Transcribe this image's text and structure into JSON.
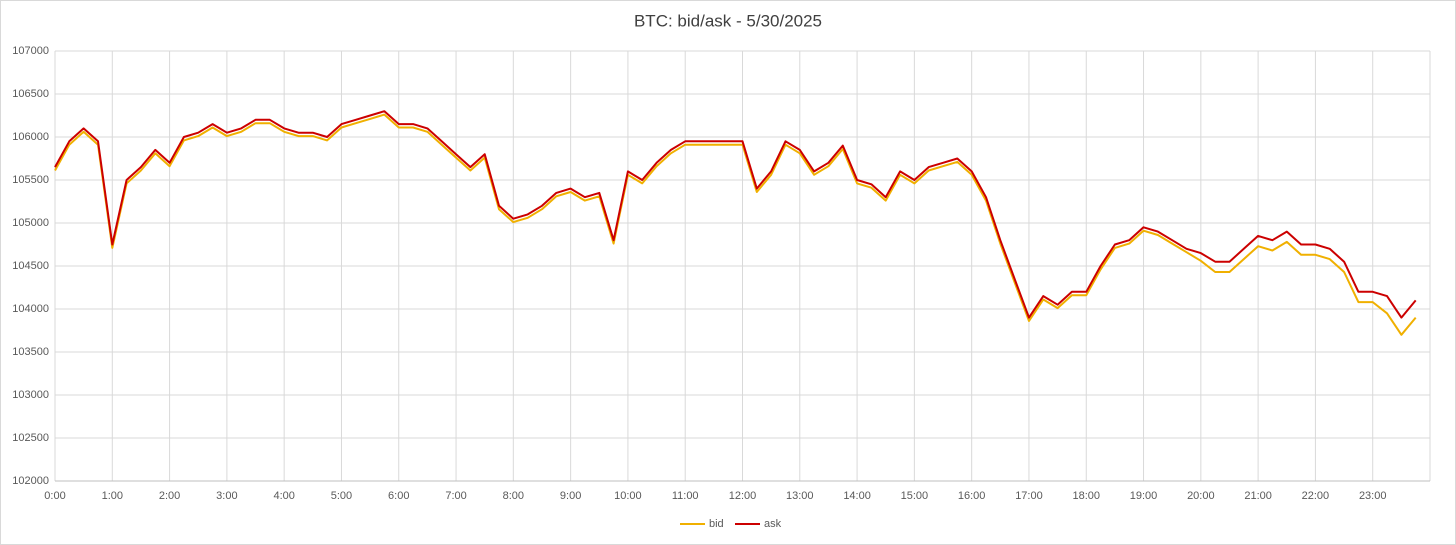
{
  "chart_data": {
    "type": "line",
    "title": "BTC: bid/ask - 5/30/2025",
    "x": [
      0,
      0.25,
      0.5,
      0.75,
      1,
      1.25,
      1.5,
      1.75,
      2,
      2.25,
      2.5,
      2.75,
      3,
      3.25,
      3.5,
      3.75,
      4,
      4.25,
      4.5,
      4.75,
      5,
      5.25,
      5.5,
      5.75,
      6,
      6.25,
      6.5,
      6.75,
      7,
      7.25,
      7.5,
      7.75,
      8,
      8.25,
      8.5,
      8.75,
      9,
      9.25,
      9.5,
      9.75,
      10,
      10.25,
      10.5,
      10.75,
      11,
      11.25,
      11.5,
      11.75,
      12,
      12.25,
      12.5,
      12.75,
      13,
      13.25,
      13.5,
      13.75,
      14,
      14.25,
      14.5,
      14.75,
      15,
      15.25,
      15.5,
      15.75,
      16,
      16.25,
      16.5,
      16.75,
      17,
      17.25,
      17.5,
      17.75,
      18,
      18.25,
      18.5,
      18.75,
      19,
      19.25,
      19.5,
      19.75,
      20,
      20.25,
      20.5,
      20.75,
      21,
      21.25,
      21.5,
      21.75,
      22,
      22.25,
      22.5,
      22.75,
      23,
      23.25,
      23.5,
      23.75
    ],
    "series": [
      {
        "name": "bid",
        "color": "#f0b000",
        "values": [
          105610,
          105910,
          106060,
          105910,
          104710,
          105460,
          105610,
          105810,
          105660,
          105960,
          106010,
          106110,
          106010,
          106060,
          106160,
          106160,
          106060,
          106010,
          106010,
          105960,
          106110,
          106160,
          106210,
          106260,
          106110,
          106110,
          106060,
          105910,
          105760,
          105610,
          105760,
          105160,
          105010,
          105060,
          105160,
          105310,
          105360,
          105260,
          105310,
          104760,
          105560,
          105460,
          105660,
          105810,
          105910,
          105910,
          105910,
          105910,
          105910,
          105360,
          105560,
          105910,
          105810,
          105560,
          105660,
          105860,
          105460,
          105410,
          105260,
          105560,
          105460,
          105610,
          105660,
          105710,
          105560,
          105260,
          104760,
          104310,
          103860,
          104110,
          104010,
          104160,
          104160,
          104460,
          104710,
          104760,
          104910,
          104860,
          104760,
          104660,
          104560,
          104430,
          104430,
          104580,
          104730,
          104680,
          104780,
          104630,
          104630,
          104580,
          104430,
          104080,
          104080,
          103950,
          103700,
          103900
        ]
      },
      {
        "name": "ask",
        "color": "#cc0000",
        "values": [
          105650,
          105950,
          106100,
          105950,
          104750,
          105500,
          105650,
          105850,
          105700,
          106000,
          106050,
          106150,
          106050,
          106100,
          106200,
          106200,
          106100,
          106050,
          106050,
          106000,
          106150,
          106200,
          106250,
          106300,
          106150,
          106150,
          106100,
          105950,
          105800,
          105650,
          105800,
          105200,
          105050,
          105100,
          105200,
          105350,
          105400,
          105300,
          105350,
          104800,
          105600,
          105500,
          105700,
          105850,
          105950,
          105950,
          105950,
          105950,
          105950,
          105400,
          105600,
          105950,
          105850,
          105600,
          105700,
          105900,
          105500,
          105450,
          105300,
          105600,
          105500,
          105650,
          105700,
          105750,
          105600,
          105300,
          104800,
          104350,
          103900,
          104150,
          104050,
          104200,
          104200,
          104500,
          104750,
          104800,
          104950,
          104900,
          104800,
          104700,
          104650,
          104550,
          104550,
          104700,
          104850,
          104800,
          104900,
          104750,
          104750,
          104700,
          104550,
          104200,
          104200,
          104150,
          103900,
          104100
        ]
      }
    ],
    "xlim": [
      0,
      24
    ],
    "ylim": [
      102000,
      107000
    ],
    "xticks": [
      {
        "value": 0,
        "label": "0:00"
      },
      {
        "value": 1,
        "label": "1:00"
      },
      {
        "value": 2,
        "label": "2:00"
      },
      {
        "value": 3,
        "label": "3:00"
      },
      {
        "value": 4,
        "label": "4:00"
      },
      {
        "value": 5,
        "label": "5:00"
      },
      {
        "value": 6,
        "label": "6:00"
      },
      {
        "value": 7,
        "label": "7:00"
      },
      {
        "value": 8,
        "label": "8:00"
      },
      {
        "value": 9,
        "label": "9:00"
      },
      {
        "value": 10,
        "label": "10:00"
      },
      {
        "value": 11,
        "label": "11:00"
      },
      {
        "value": 12,
        "label": "12:00"
      },
      {
        "value": 13,
        "label": "13:00"
      },
      {
        "value": 14,
        "label": "14:00"
      },
      {
        "value": 15,
        "label": "15:00"
      },
      {
        "value": 16,
        "label": "16:00"
      },
      {
        "value": 17,
        "label": "17:00"
      },
      {
        "value": 18,
        "label": "18:00"
      },
      {
        "value": 19,
        "label": "19:00"
      },
      {
        "value": 20,
        "label": "20:00"
      },
      {
        "value": 21,
        "label": "21:00"
      },
      {
        "value": 22,
        "label": "22:00"
      },
      {
        "value": 23,
        "label": "23:00"
      }
    ],
    "yticks": [
      102000,
      102500,
      103000,
      103500,
      104000,
      104500,
      105000,
      105500,
      106000,
      106500,
      107000
    ],
    "grid": true,
    "legend": "bottom"
  }
}
